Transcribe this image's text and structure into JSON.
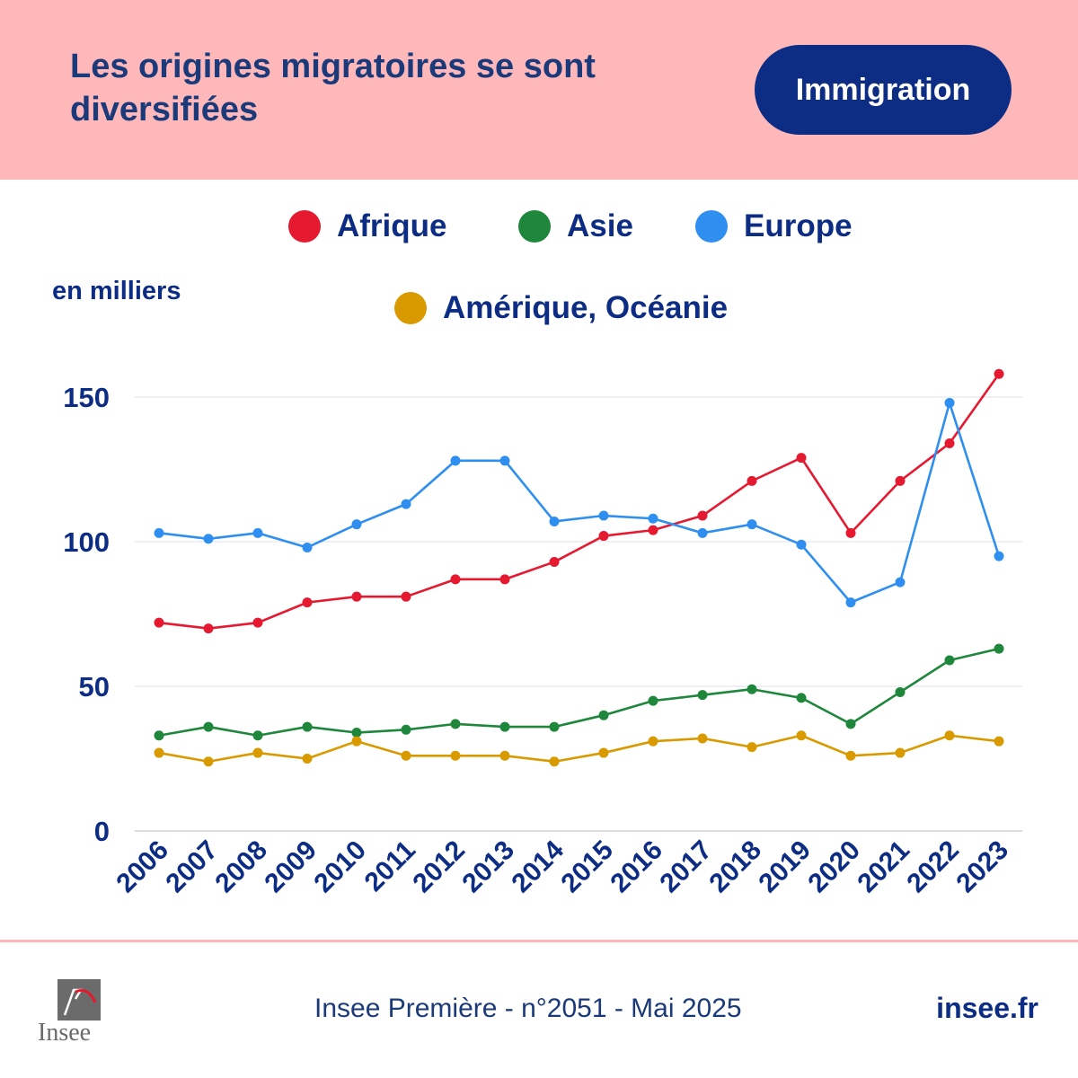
{
  "header": {
    "title": "Les origines migratoires se sont diversifiées",
    "badge": "Immigration"
  },
  "unit_label": "en milliers",
  "legend": [
    {
      "label": "Afrique",
      "color": "#e5192f"
    },
    {
      "label": "Asie",
      "color": "#1e873c"
    },
    {
      "label": "Europe",
      "color": "#2f8ff0"
    },
    {
      "label": "Amérique, Océanie",
      "color": "#d99a00"
    }
  ],
  "chart_data": {
    "type": "line",
    "title": "Les origines migratoires se sont diversifiées",
    "xlabel": "",
    "ylabel": "en milliers",
    "x": [
      "2006",
      "2007",
      "2008",
      "2009",
      "2010",
      "2011",
      "2012",
      "2013",
      "2014",
      "2015",
      "2016",
      "2017",
      "2018",
      "2019",
      "2020",
      "2021",
      "2022",
      "2023"
    ],
    "ylim": [
      0,
      150
    ],
    "yticks": [
      0,
      50,
      100,
      150
    ],
    "grid": true,
    "legend_position": "top",
    "series": [
      {
        "name": "Afrique",
        "color": "#e5192f",
        "values": [
          72,
          70,
          72,
          79,
          81,
          81,
          87,
          87,
          93,
          102,
          104,
          109,
          121,
          129,
          103,
          121,
          134,
          158
        ]
      },
      {
        "name": "Asie",
        "color": "#1e873c",
        "values": [
          33,
          36,
          33,
          36,
          34,
          35,
          37,
          36,
          36,
          40,
          45,
          47,
          49,
          46,
          37,
          48,
          59,
          63
        ]
      },
      {
        "name": "Europe",
        "color": "#2f8ff0",
        "values": [
          103,
          101,
          103,
          98,
          106,
          113,
          128,
          128,
          107,
          109,
          108,
          103,
          106,
          99,
          79,
          86,
          148,
          95
        ]
      },
      {
        "name": "Amérique, Océanie",
        "color": "#d99a00",
        "values": [
          27,
          24,
          27,
          25,
          31,
          26,
          26,
          26,
          24,
          27,
          31,
          32,
          29,
          33,
          26,
          27,
          33,
          31
        ]
      }
    ]
  },
  "footer": {
    "source": "Insee Première - n°2051 - Mai 2025",
    "site": "insee.fr",
    "logo_text": "Insee"
  }
}
